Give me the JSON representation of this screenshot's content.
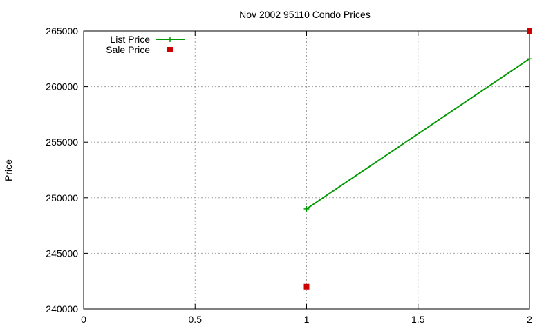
{
  "chart_data": {
    "type": "line",
    "title": "Nov 2002 95110 Condo Prices",
    "xlabel": "",
    "ylabel": "Price",
    "xlim": [
      0,
      2
    ],
    "ylim": [
      240000,
      265000
    ],
    "xticks": [
      "0",
      "0.5",
      "1",
      "1.5",
      "2"
    ],
    "xtick_values": [
      0,
      0.5,
      1,
      1.5,
      2
    ],
    "yticks": [
      "240000",
      "245000",
      "250000",
      "255000",
      "260000",
      "265000"
    ],
    "ytick_values": [
      240000,
      245000,
      250000,
      255000,
      260000,
      265000
    ],
    "grid": true,
    "legend_position": "top-left",
    "series": [
      {
        "name": "List Price",
        "style": "linespoints",
        "marker": "plus",
        "color": "#009900",
        "x": [
          1,
          2
        ],
        "y": [
          249000,
          262500
        ]
      },
      {
        "name": "Sale Price",
        "style": "points",
        "marker": "square",
        "color": "#cc0000",
        "x": [
          1,
          2
        ],
        "y": [
          242000,
          265000
        ]
      }
    ]
  }
}
